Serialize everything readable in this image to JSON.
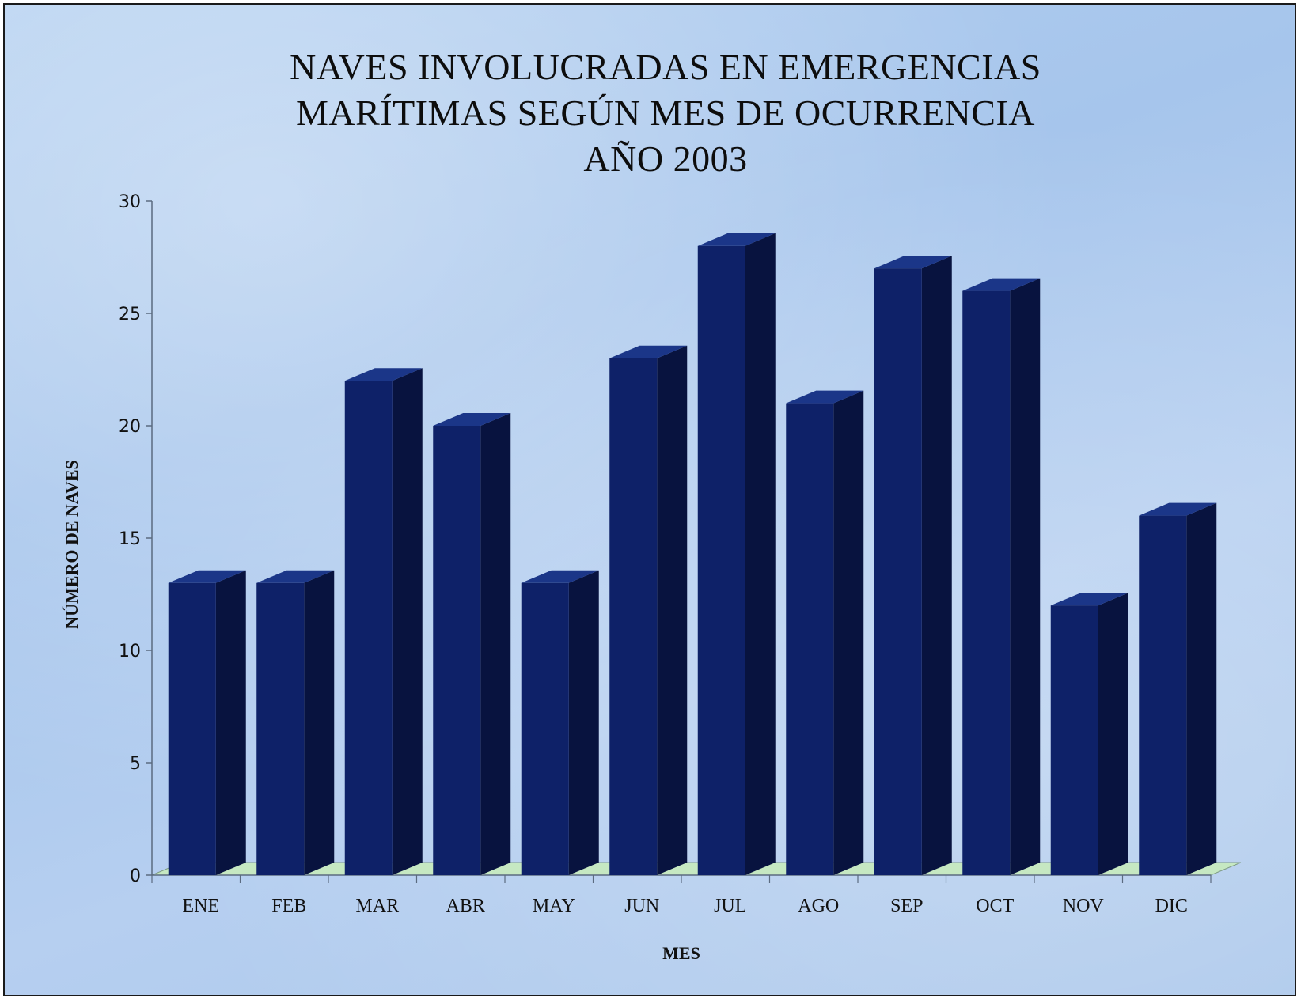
{
  "chart_data": {
    "type": "bar",
    "title_lines": [
      "NAVES INVOLUCRADAS EN EMERGENCIAS",
      "MARÍTIMAS SEGÚN MES DE OCURRENCIA",
      "AÑO 2003"
    ],
    "xlabel": "MES",
    "ylabel": "NÚMERO DE NAVES",
    "categories": [
      "ENE",
      "FEB",
      "MAR",
      "ABR",
      "MAY",
      "JUN",
      "JUL",
      "AGO",
      "SEP",
      "OCT",
      "NOV",
      "DIC"
    ],
    "values": [
      13,
      13,
      22,
      20,
      13,
      23,
      28,
      21,
      27,
      26,
      12,
      16
    ],
    "ylim": [
      0,
      30
    ],
    "yticks": [
      "0",
      "5",
      "10",
      "15",
      "20",
      "25",
      "30"
    ],
    "grid": false,
    "legend": "none",
    "style": "3d-column"
  },
  "colors": {
    "bar_front": "#0e2168",
    "bar_side": "#08133f",
    "bar_top": "#1b3688",
    "floor": "#c6e8c2",
    "background": "#aac8ee"
  }
}
